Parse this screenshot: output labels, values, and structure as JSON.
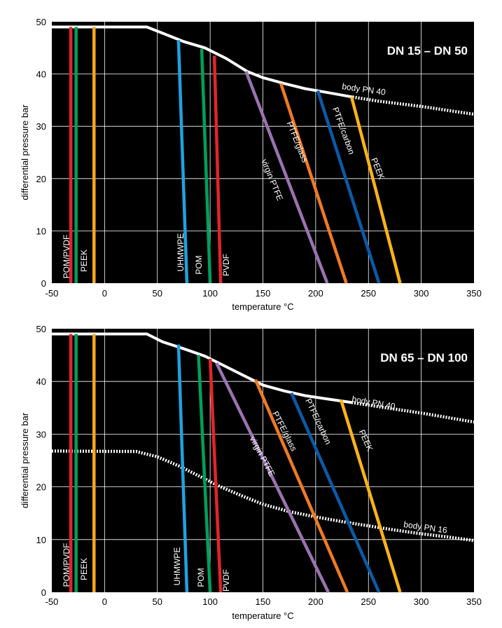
{
  "colors": {
    "background": "#000000",
    "grid": "#ffffff",
    "body_curve": "#ffffff",
    "POM/PVDF": "#e3232c",
    "PEEK_low": "#f5a623",
    "PEEK_mid": "#00a05a",
    "UHMWPE": "#1ea3e0",
    "POM": "#00a05a",
    "PVDF": "#e3232c",
    "virgin PTFE": "#9b72b0",
    "PTFE/glass": "#f07a22",
    "PTFE/carbon": "#0a5aa8",
    "PEEK": "#fbb317"
  },
  "chart_data": [
    {
      "type": "line",
      "title": "DN 15 – DN 50",
      "xlabel": "temperature °C",
      "ylabel": "differential pressure bar",
      "xlim": [
        -50,
        350
      ],
      "ylim": [
        0,
        50
      ],
      "xticks": [
        "-50",
        "0",
        "50",
        "100",
        "150",
        "200",
        "250",
        "300",
        "350"
      ],
      "yticks": [
        "0",
        "10",
        "20",
        "30",
        "40",
        "50"
      ],
      "grid": true,
      "series": [
        {
          "name": "body PN 40",
          "style": "solid-then-dotted",
          "dotted_from_x": 235,
          "points": [
            [
              -50,
              49
            ],
            [
              40,
              49
            ],
            [
              55,
              47.8
            ],
            [
              75,
              46.2
            ],
            [
              95,
              45
            ],
            [
              115,
              43
            ],
            [
              135,
              40.5
            ],
            [
              150,
              39.3
            ],
            [
              170,
              38.2
            ],
            [
              190,
              37.2
            ],
            [
              210,
              36.5
            ],
            [
              235,
              35.6
            ],
            [
              260,
              34.8
            ],
            [
              300,
              33.8
            ],
            [
              350,
              32.3
            ]
          ]
        },
        {
          "name": "POM/PVDF",
          "color_key": "POM/PVDF",
          "points": [
            [
              -32,
              49
            ],
            [
              -32,
              0
            ]
          ]
        },
        {
          "name": "PEEK",
          "color_key": "PEEK_mid",
          "points": [
            [
              -27,
              49
            ],
            [
              -27,
              0
            ]
          ]
        },
        {
          "name": "",
          "color_key": "PEEK_low",
          "points": [
            [
              -10,
              49
            ],
            [
              -10,
              0
            ]
          ]
        },
        {
          "name": "UHMWPE",
          "color_key": "UHMWPE",
          "points": [
            [
              70,
              46.5
            ],
            [
              78,
              0
            ]
          ]
        },
        {
          "name": "POM",
          "color_key": "POM",
          "points": [
            [
              92,
              44.8
            ],
            [
              100,
              0
            ]
          ]
        },
        {
          "name": "PVDF",
          "color_key": "PVDF",
          "points": [
            [
              104,
              43.5
            ],
            [
              110,
              0
            ]
          ]
        },
        {
          "name": "virgin PTFE",
          "color_key": "virgin PTFE",
          "points": [
            [
              134,
              40.5
            ],
            [
              211,
              0
            ]
          ]
        },
        {
          "name": "PTFE/glass",
          "color_key": "PTFE/glass",
          "points": [
            [
              167,
              38.2
            ],
            [
              229,
              0
            ]
          ]
        },
        {
          "name": "PTFE/carbon",
          "color_key": "PTFE/carbon",
          "points": [
            [
              202,
              36.8
            ],
            [
              260,
              0
            ]
          ]
        },
        {
          "name": "PEEK",
          "color_key": "PEEK",
          "points": [
            [
              234,
              35.6
            ],
            [
              280,
              0
            ]
          ]
        }
      ],
      "annotations": [
        "body PN 40"
      ]
    },
    {
      "type": "line",
      "title": "DN 65 – DN 100",
      "xlabel": "temperature °C",
      "ylabel": "differential pressure bar",
      "xlim": [
        -50,
        350
      ],
      "ylim": [
        0,
        50
      ],
      "xticks": [
        "-50",
        "0",
        "50",
        "100",
        "150",
        "200",
        "250",
        "300",
        "350"
      ],
      "yticks": [
        "0",
        "10",
        "20",
        "30",
        "40",
        "50"
      ],
      "grid": true,
      "series": [
        {
          "name": "body PN 40",
          "style": "solid-then-dotted",
          "dotted_from_x": 234,
          "points": [
            [
              -50,
              49
            ],
            [
              40,
              49
            ],
            [
              55,
              47.5
            ],
            [
              75,
              46.2
            ],
            [
              95,
              44.8
            ],
            [
              115,
              42.8
            ],
            [
              135,
              40.8
            ],
            [
              150,
              39.3
            ],
            [
              170,
              38.2
            ],
            [
              190,
              37.3
            ],
            [
              210,
              36.7
            ],
            [
              234,
              36.0
            ],
            [
              260,
              35.2
            ],
            [
              300,
              34.0
            ],
            [
              350,
              32.3
            ]
          ]
        },
        {
          "name": "body PN 16",
          "style": "dotted",
          "points": [
            [
              -50,
              26.8
            ],
            [
              30,
              26.7
            ],
            [
              50,
              25.7
            ],
            [
              70,
              24.0
            ],
            [
              90,
              22.0
            ],
            [
              110,
              20.0
            ],
            [
              130,
              18.3
            ],
            [
              150,
              16.7
            ],
            [
              175,
              15.3
            ],
            [
              200,
              14.3
            ],
            [
              225,
              13.4
            ],
            [
              250,
              12.6
            ],
            [
              275,
              11.8
            ],
            [
              300,
              11.1
            ],
            [
              325,
              10.5
            ],
            [
              350,
              9.8
            ]
          ]
        },
        {
          "name": "POM/PVDF",
          "color_key": "POM/PVDF",
          "points": [
            [
              -32,
              49
            ],
            [
              -32,
              0
            ]
          ]
        },
        {
          "name": "PEEK",
          "color_key": "PEEK_mid",
          "points": [
            [
              -27,
              49
            ],
            [
              -27,
              0
            ]
          ]
        },
        {
          "name": "",
          "color_key": "PEEK_low",
          "points": [
            [
              -10,
              49
            ],
            [
              -10,
              0
            ]
          ]
        },
        {
          "name": "UHMWPE",
          "color_key": "UHMWPE",
          "points": [
            [
              70,
              47
            ],
            [
              78,
              0
            ]
          ]
        },
        {
          "name": "POM",
          "color_key": "POM",
          "points": [
            [
              89,
              45
            ],
            [
              100,
              0
            ]
          ]
        },
        {
          "name": "PVDF",
          "color_key": "PVDF",
          "points": [
            [
              100,
              44.3
            ],
            [
              110,
              0
            ]
          ]
        },
        {
          "name": "virgin PTFE",
          "color_key": "virgin PTFE",
          "points": [
            [
              106,
              43.5
            ],
            [
              212,
              0
            ]
          ]
        },
        {
          "name": "PTFE/glass",
          "color_key": "PTFE/glass",
          "points": [
            [
              143,
              40.3
            ],
            [
              230,
              0
            ]
          ]
        },
        {
          "name": "PTFE/carbon",
          "color_key": "PTFE/carbon",
          "points": [
            [
              177,
              37.8
            ],
            [
              260,
              0
            ]
          ]
        },
        {
          "name": "PEEK",
          "color_key": "PEEK",
          "points": [
            [
              224,
              36.5
            ],
            [
              280,
              0
            ]
          ]
        }
      ],
      "annotations": [
        "body PN 40",
        "body PN 16"
      ]
    }
  ]
}
